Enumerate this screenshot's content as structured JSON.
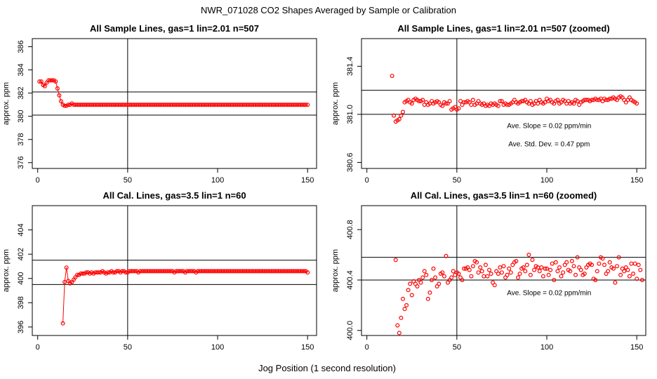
{
  "figure": {
    "title": "NWR_071028  CO2 Shapes Averaged by Sample or Calibration",
    "xlabel": "Jog Position (1 second resolution)"
  },
  "colors": {
    "points": "#ff0000",
    "lines": "#000000"
  },
  "chart_data": [
    {
      "type": "scatter",
      "title": "All Sample Lines, gas=1 lin=2.01 n=507",
      "ylabel": "approx. ppm",
      "xlim": [
        -3,
        155
      ],
      "ylim": [
        375.5,
        386.7
      ],
      "xticks": [
        0,
        50,
        100,
        150
      ],
      "yticks": [
        376,
        378,
        380,
        382,
        384,
        386
      ],
      "vline": 50,
      "hlines": [
        382.1,
        380.1
      ],
      "point_style": "connected-circles",
      "x_start": 1,
      "y": [
        383.0,
        383.0,
        382.7,
        382.6,
        382.9,
        383.1,
        383.1,
        383.1,
        383.1,
        383.0,
        382.4,
        381.8,
        381.3,
        381.0,
        380.9,
        380.9,
        381.0,
        381.0,
        381.1,
        381.0,
        381.0,
        381.0,
        381.0,
        381.0,
        381.0,
        381.0,
        381.0,
        381.0,
        381.0,
        381.0,
        381.0,
        381.0,
        381.0,
        381.0,
        381.0,
        381.0,
        381.0,
        381.0,
        381.0,
        381.0,
        381.0,
        381.0,
        381.0,
        381.0,
        381.0,
        381.0,
        381.0,
        381.0,
        381.0,
        381.0,
        381.0,
        381.0,
        381.0,
        381.0,
        381.0,
        381.0,
        381.0,
        381.0,
        381.0,
        381.0,
        381.0,
        381.0,
        381.0,
        381.0,
        381.0,
        381.0,
        381.0,
        381.0,
        381.0,
        381.0,
        381.0,
        381.0,
        381.0,
        381.0,
        381.0,
        381.0,
        381.0,
        381.0,
        381.0,
        381.0,
        381.0,
        381.0,
        381.0,
        381.0,
        381.0,
        381.0,
        381.0,
        381.0,
        381.0,
        381.0,
        381.0,
        381.0,
        381.0,
        381.0,
        381.0,
        381.0,
        381.0,
        381.0,
        381.0,
        381.0,
        381.0,
        381.0,
        381.0,
        381.0,
        381.0,
        381.0,
        381.0,
        381.0,
        381.0,
        381.0,
        381.0,
        381.0,
        381.0,
        381.0,
        381.0,
        381.0,
        381.0,
        381.0,
        381.0,
        381.0,
        381.0,
        381.0,
        381.0,
        381.0,
        381.0,
        381.0,
        381.0,
        381.0,
        381.0,
        381.0,
        381.0,
        381.0,
        381.0,
        381.0,
        381.0,
        381.0,
        381.0,
        381.0,
        381.0,
        381.0,
        381.0,
        381.0,
        381.0,
        381.0,
        381.0,
        381.0,
        381.0,
        381.0,
        381.0,
        381.0
      ],
      "annotations": []
    },
    {
      "type": "scatter",
      "title": "All Sample Lines, gas=1 lin=2.01 n=507 (zoomed)",
      "ylabel": "approx. ppm",
      "xlim": [
        -3,
        155
      ],
      "ylim": [
        380.55,
        381.63
      ],
      "xticks": [
        0,
        50,
        100,
        150
      ],
      "ytick_labels": [
        "380.6",
        "381.0",
        "381.4"
      ],
      "yticks": [
        380.6,
        381.0,
        381.4
      ],
      "vline": 50,
      "hlines": [
        381.2,
        381.0
      ],
      "point_style": "circles",
      "x_start": 14,
      "y": [
        381.32,
        380.99,
        380.94,
        380.95,
        380.96,
        380.99,
        381.02,
        381.1,
        381.11,
        381.12,
        381.1,
        381.09,
        381.12,
        381.13,
        381.12,
        381.11,
        381.11,
        381.12,
        381.08,
        381.1,
        381.08,
        381.09,
        381.11,
        381.09,
        381.1,
        381.11,
        381.1,
        381.08,
        381.07,
        381.1,
        381.09,
        381.09,
        381.11,
        381.04,
        381.05,
        381.06,
        381.04,
        381.05,
        381.11,
        381.08,
        381.1,
        381.1,
        381.11,
        381.1,
        381.08,
        381.12,
        381.08,
        381.09,
        381.11,
        381.09,
        381.08,
        381.09,
        381.07,
        381.08,
        381.07,
        381.09,
        381.08,
        381.09,
        381.08,
        381.07,
        381.11,
        381.11,
        381.08,
        381.09,
        381.08,
        381.08,
        381.09,
        381.1,
        381.12,
        381.1,
        381.09,
        381.1,
        381.11,
        381.11,
        381.12,
        381.1,
        381.09,
        381.11,
        381.08,
        381.09,
        381.11,
        381.09,
        381.12,
        381.1,
        381.09,
        381.1,
        381.13,
        381.11,
        381.12,
        381.1,
        381.09,
        381.11,
        381.12,
        381.09,
        381.1,
        381.12,
        381.11,
        381.09,
        381.11,
        381.09,
        381.1,
        381.09,
        381.12,
        381.11,
        381.08,
        381.1,
        381.11,
        381.12,
        381.12,
        381.12,
        381.11,
        381.12,
        381.12,
        381.13,
        381.12,
        381.12,
        381.13,
        381.11,
        381.13,
        381.12,
        381.12,
        381.13,
        381.13,
        381.14,
        381.13,
        381.12,
        381.14,
        381.15,
        381.14,
        381.12,
        381.1,
        381.12,
        381.14,
        381.12,
        381.11,
        381.1,
        381.09
      ],
      "annotations": [
        "Ave. Slope =  0.02  ppm/min",
        "Ave. Std. Dev. =  0.47  ppm"
      ]
    },
    {
      "type": "scatter",
      "title": "All Cal. Lines, gas=3.5 lin=1 n=60",
      "ylabel": "approx. ppm",
      "xlim": [
        -3,
        155
      ],
      "ylim": [
        395.3,
        406.0
      ],
      "xticks": [
        0,
        50,
        100,
        150
      ],
      "yticks": [
        396,
        398,
        400,
        402,
        404
      ],
      "vline": 50,
      "hlines": [
        401.5,
        399.5
      ],
      "point_style": "connected-circles",
      "x_start": 14,
      "y": [
        396.3,
        399.7,
        400.9,
        399.8,
        399.6,
        399.7,
        399.9,
        400.1,
        400.3,
        400.3,
        400.4,
        400.4,
        400.4,
        400.5,
        400.5,
        400.4,
        400.5,
        400.4,
        400.5,
        400.5,
        400.5,
        400.5,
        400.6,
        400.5,
        400.4,
        400.5,
        400.5,
        400.6,
        400.5,
        400.5,
        400.6,
        400.6,
        400.5,
        400.6,
        400.6,
        400.5,
        400.5,
        400.6,
        400.6,
        400.6,
        400.6,
        400.6,
        400.5,
        400.6,
        400.6,
        400.6,
        400.6,
        400.6,
        400.6,
        400.6,
        400.6,
        400.6,
        400.6,
        400.6,
        400.6,
        400.6,
        400.6,
        400.6,
        400.6,
        400.6,
        400.6,
        400.6,
        400.5,
        400.6,
        400.6,
        400.6,
        400.6,
        400.6,
        400.5,
        400.6,
        400.6,
        400.6,
        400.6,
        400.6,
        400.5,
        400.6,
        400.6,
        400.6,
        400.6,
        400.6,
        400.6,
        400.6,
        400.6,
        400.6,
        400.6,
        400.6,
        400.6,
        400.6,
        400.6,
        400.6,
        400.6,
        400.6,
        400.6,
        400.6,
        400.6,
        400.6,
        400.6,
        400.6,
        400.6,
        400.6,
        400.6,
        400.6,
        400.6,
        400.6,
        400.6,
        400.6,
        400.6,
        400.6,
        400.6,
        400.6,
        400.6,
        400.6,
        400.6,
        400.6,
        400.6,
        400.6,
        400.6,
        400.6,
        400.6,
        400.6,
        400.6,
        400.6,
        400.6,
        400.6,
        400.6,
        400.6,
        400.6,
        400.6,
        400.6,
        400.6,
        400.6,
        400.6,
        400.6,
        400.6,
        400.6,
        400.6,
        400.5
      ],
      "annotations": []
    },
    {
      "type": "scatter",
      "title": "All Cal. Lines, gas=3.5 lin=1 n=60 (zoomed)",
      "ylabel": "approx. ppm",
      "xlim": [
        -3,
        155
      ],
      "ylim": [
        399.96,
        400.99
      ],
      "xticks": [
        0,
        50,
        100,
        150
      ],
      "ytick_labels": [
        "400.0",
        "400.4",
        "400.8"
      ],
      "yticks": [
        400.0,
        400.4,
        400.8
      ],
      "vline": 50,
      "hlines": [
        400.58,
        400.4
      ],
      "point_style": "circles",
      "x_start": 16,
      "y": [
        400.56,
        400.04,
        399.98,
        400.1,
        400.25,
        400.17,
        400.2,
        400.32,
        400.37,
        400.28,
        400.39,
        400.37,
        400.35,
        400.4,
        400.38,
        400.42,
        400.47,
        400.44,
        400.25,
        400.3,
        400.4,
        400.49,
        400.42,
        400.35,
        400.37,
        400.45,
        400.46,
        400.43,
        400.59,
        400.38,
        400.4,
        400.42,
        400.47,
        400.44,
        400.46,
        400.45,
        400.42,
        400.4,
        400.49,
        400.49,
        400.5,
        400.48,
        400.43,
        400.51,
        400.55,
        400.54,
        400.46,
        400.5,
        400.47,
        400.43,
        400.52,
        400.43,
        400.48,
        400.45,
        400.38,
        400.36,
        400.47,
        400.45,
        400.5,
        400.46,
        400.51,
        400.42,
        400.44,
        400.49,
        400.46,
        400.52,
        400.54,
        400.55,
        400.42,
        400.45,
        400.49,
        400.5,
        400.47,
        400.52,
        400.6,
        400.44,
        400.56,
        400.48,
        400.51,
        400.5,
        400.47,
        400.5,
        400.43,
        400.49,
        400.49,
        400.44,
        400.48,
        400.53,
        400.4,
        400.54,
        400.47,
        400.5,
        400.43,
        400.46,
        400.52,
        400.54,
        400.48,
        400.47,
        400.55,
        400.51,
        400.44,
        400.58,
        400.5,
        400.48,
        400.44,
        400.45,
        400.5,
        400.52,
        400.53,
        400.52,
        400.41,
        400.4,
        400.47,
        400.53,
        400.58,
        400.57,
        400.52,
        400.45,
        400.47,
        400.54,
        400.5,
        400.49,
        400.38,
        400.51,
        400.58,
        400.44,
        400.49,
        400.47,
        400.5,
        400.48,
        400.43,
        400.53,
        400.45,
        400.53,
        400.41,
        400.52,
        400.48,
        400.4
      ],
      "annotations": [
        "Ave. Slope =  0.02  ppm/min"
      ]
    }
  ]
}
